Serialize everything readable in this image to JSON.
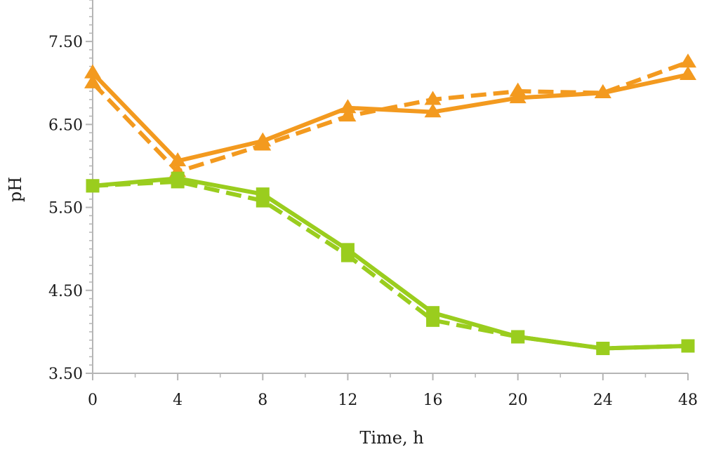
{
  "chart_data": {
    "type": "line",
    "title": "",
    "xlabel": "Time, h",
    "ylabel": "pH",
    "categories": [
      "0",
      "4",
      "8",
      "12",
      "16",
      "20",
      "24",
      "48"
    ],
    "ylim": [
      3.5,
      8.0
    ],
    "yticks": [
      "3.50",
      "4.50",
      "5.50",
      "6.50",
      "7.50"
    ],
    "grid": false,
    "legend": "none",
    "series": [
      {
        "color": "#f39a1f",
        "marker": "triangle",
        "dash": "solid",
        "values": [
          7.12,
          6.06,
          6.3,
          6.7,
          6.65,
          6.82,
          6.88,
          7.1
        ]
      },
      {
        "color": "#f39a1f",
        "marker": "triangle",
        "dash": "dashed",
        "values": [
          7.0,
          5.93,
          6.25,
          6.6,
          6.8,
          6.9,
          6.88,
          7.25
        ]
      },
      {
        "color": "#9acd1e",
        "marker": "square",
        "dash": "solid",
        "values": [
          5.76,
          5.85,
          5.66,
          4.99,
          4.23,
          3.94,
          3.8,
          3.83
        ]
      },
      {
        "color": "#9acd1e",
        "marker": "square",
        "dash": "dashed",
        "values": [
          5.76,
          5.81,
          5.58,
          4.92,
          4.14,
          3.94,
          3.8,
          3.83
        ]
      }
    ]
  }
}
